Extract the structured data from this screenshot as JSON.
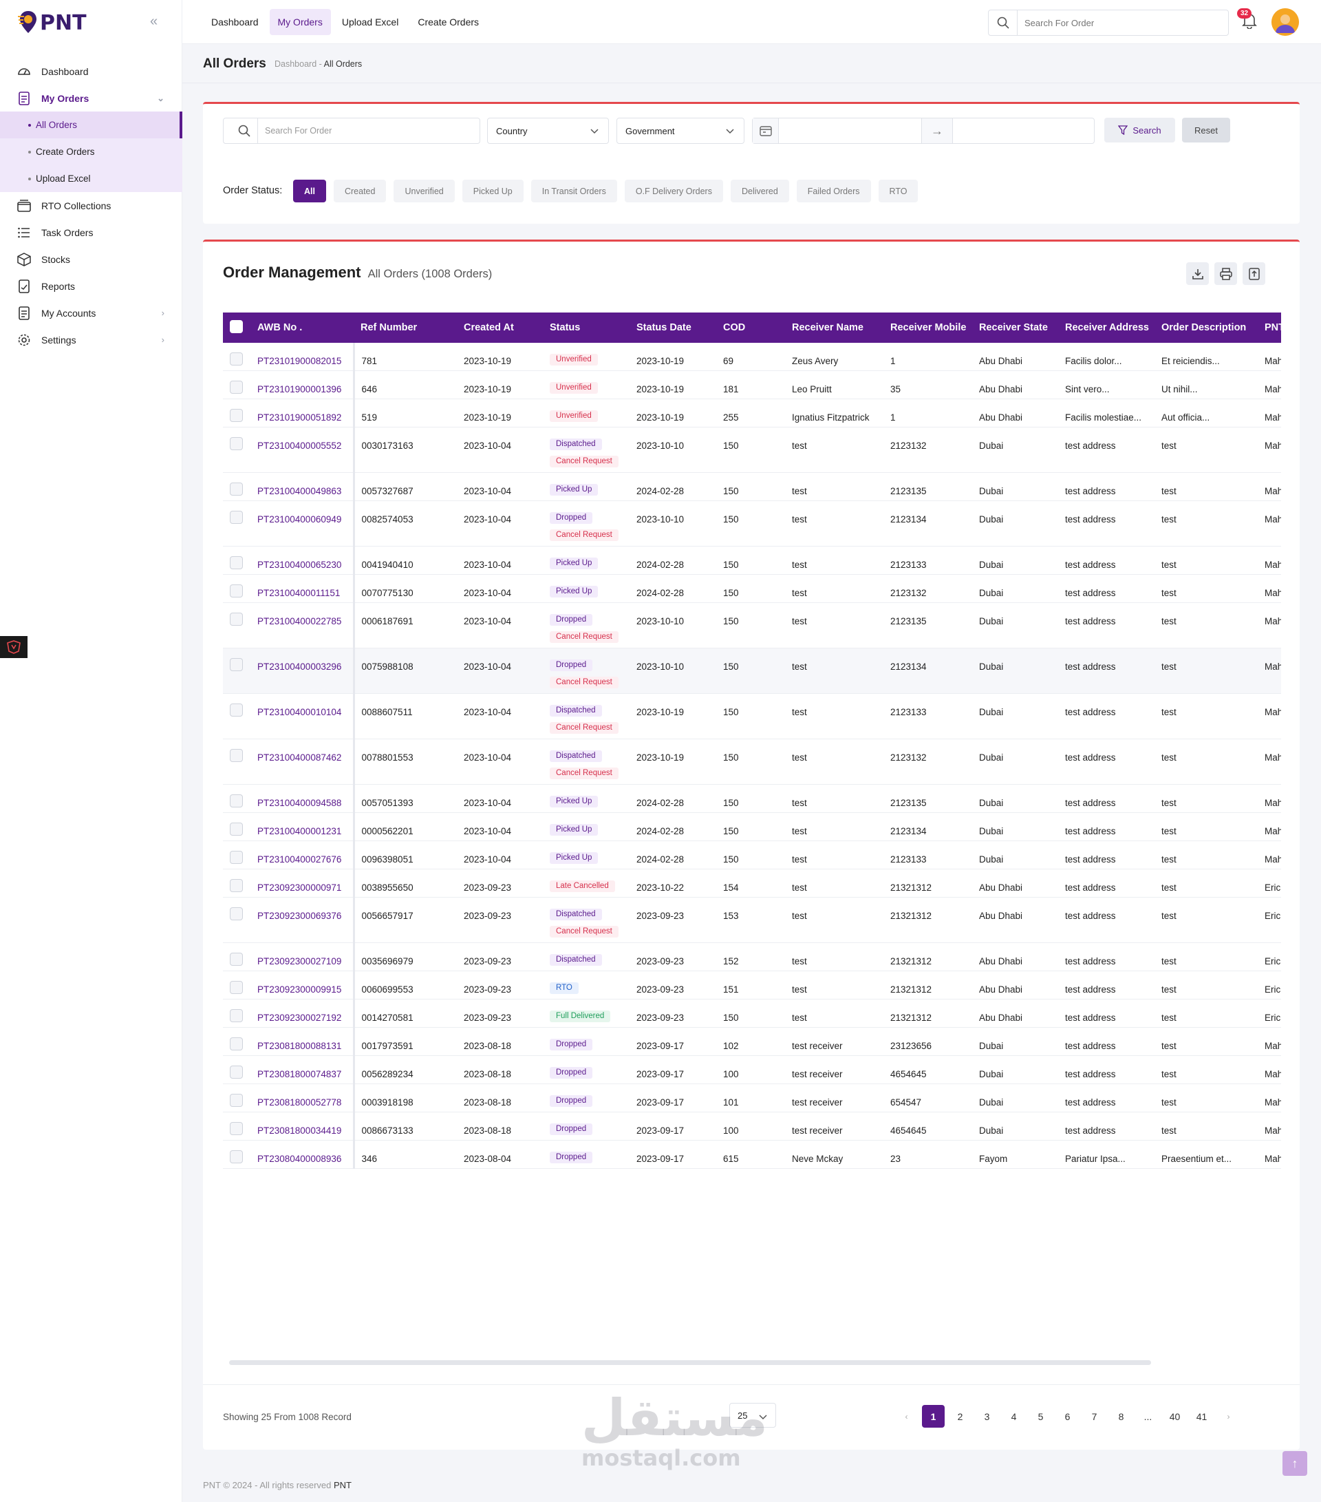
{
  "app": {
    "logo_text": "PNT"
  },
  "sidebar": {
    "items": [
      {
        "label": "Dashboard",
        "icon": "dashboard-gauge-icon"
      },
      {
        "label": "My Orders",
        "icon": "document-icon"
      },
      {
        "label": "RTO Collections",
        "icon": "box-icon"
      },
      {
        "label": "Task Orders",
        "icon": "list-icon"
      },
      {
        "label": "Stocks",
        "icon": "cube-icon"
      },
      {
        "label": "Reports",
        "icon": "report-icon"
      },
      {
        "label": "My Accounts",
        "icon": "document-icon"
      },
      {
        "label": "Settings",
        "icon": "gear-icon"
      }
    ],
    "sub_items": [
      "All Orders",
      "Create Orders",
      "Upload Excel"
    ]
  },
  "topnav": {
    "items": [
      "Dashboard",
      "My Orders",
      "Upload Excel",
      "Create Orders"
    ]
  },
  "header": {
    "search_placeholder": "Search For Order",
    "notification_count": "32"
  },
  "page": {
    "title": "All Orders",
    "crumb_root": "Dashboard",
    "crumb_sep": "-",
    "crumb_current": "All Orders"
  },
  "filters": {
    "search_placeholder": "Search For Order",
    "country": "Country",
    "government": "Government",
    "search_button": "Search",
    "reset_button": "Reset",
    "status_label": "Order Status:",
    "chips": [
      "All",
      "Created",
      "Unverified",
      "Picked Up",
      "In Transit Orders",
      "O.F Delivery Orders",
      "Delivered",
      "Failed Orders",
      "RTO"
    ]
  },
  "orders": {
    "title": "Order Management",
    "subtitle": "All Orders (1008 Orders)",
    "columns": [
      "AWB No .",
      "Ref Number",
      "Created At",
      "Status",
      "Status Date",
      "COD",
      "Receiver Name",
      "Receiver Mobile",
      "Receiver State",
      "Receiver Address",
      "Order Description",
      "PNT"
    ],
    "rows": [
      {
        "awb": "PT23101900082015",
        "ref": "781",
        "created": "2023-10-19",
        "status": [
          "Unverified"
        ],
        "status_date": "2023-10-19",
        "cod": "69",
        "name": "Zeus Avery",
        "mobile": "1",
        "state": "Abu Dhabi",
        "address": "Facilis dolor...",
        "desc": "Et reiciendis...",
        "pnt": "Mah"
      },
      {
        "awb": "PT23101900001396",
        "ref": "646",
        "created": "2023-10-19",
        "status": [
          "Unverified"
        ],
        "status_date": "2023-10-19",
        "cod": "181",
        "name": "Leo Pruitt",
        "mobile": "35",
        "state": "Abu Dhabi",
        "address": "Sint vero...",
        "desc": "Ut nihil...",
        "pnt": "Mah"
      },
      {
        "awb": "PT23101900051892",
        "ref": "519",
        "created": "2023-10-19",
        "status": [
          "Unverified"
        ],
        "status_date": "2023-10-19",
        "cod": "255",
        "name": "Ignatius Fitzpatrick",
        "mobile": "1",
        "state": "Abu Dhabi",
        "address": "Facilis molestiae...",
        "desc": "Aut officia...",
        "pnt": "Mah"
      },
      {
        "awb": "PT23100400005552",
        "ref": "0030173163",
        "created": "2023-10-04",
        "status": [
          "Dispatched",
          "Cancel Request"
        ],
        "status_date": "2023-10-10",
        "cod": "150",
        "name": "test",
        "mobile": "2123132",
        "state": "Dubai",
        "address": "test address",
        "desc": "test",
        "pnt": "Mah"
      },
      {
        "awb": "PT23100400049863",
        "ref": "0057327687",
        "created": "2023-10-04",
        "status": [
          "Picked Up"
        ],
        "status_date": "2024-02-28",
        "cod": "150",
        "name": "test",
        "mobile": "2123135",
        "state": "Dubai",
        "address": "test address",
        "desc": "test",
        "pnt": "Mah"
      },
      {
        "awb": "PT23100400060949",
        "ref": "0082574053",
        "created": "2023-10-04",
        "status": [
          "Dropped",
          "Cancel Request"
        ],
        "status_date": "2023-10-10",
        "cod": "150",
        "name": "test",
        "mobile": "2123134",
        "state": "Dubai",
        "address": "test address",
        "desc": "test",
        "pnt": "Mah"
      },
      {
        "awb": "PT23100400065230",
        "ref": "0041940410",
        "created": "2023-10-04",
        "status": [
          "Picked Up"
        ],
        "status_date": "2024-02-28",
        "cod": "150",
        "name": "test",
        "mobile": "2123133",
        "state": "Dubai",
        "address": "test address",
        "desc": "test",
        "pnt": "Mah"
      },
      {
        "awb": "PT23100400011151",
        "ref": "0070775130",
        "created": "2023-10-04",
        "status": [
          "Picked Up"
        ],
        "status_date": "2024-02-28",
        "cod": "150",
        "name": "test",
        "mobile": "2123132",
        "state": "Dubai",
        "address": "test address",
        "desc": "test",
        "pnt": "Mah"
      },
      {
        "awb": "PT23100400022785",
        "ref": "0006187691",
        "created": "2023-10-04",
        "status": [
          "Dropped",
          "Cancel Request"
        ],
        "status_date": "2023-10-10",
        "cod": "150",
        "name": "test",
        "mobile": "2123135",
        "state": "Dubai",
        "address": "test address",
        "desc": "test",
        "pnt": "Mah"
      },
      {
        "awb": "PT23100400003296",
        "ref": "0075988108",
        "created": "2023-10-04",
        "status": [
          "Dropped",
          "Cancel Request"
        ],
        "status_date": "2023-10-10",
        "cod": "150",
        "name": "test",
        "mobile": "2123134",
        "state": "Dubai",
        "address": "test address",
        "desc": "test",
        "pnt": "Mah"
      },
      {
        "awb": "PT23100400010104",
        "ref": "0088607511",
        "created": "2023-10-04",
        "status": [
          "Dispatched",
          "Cancel Request"
        ],
        "status_date": "2023-10-19",
        "cod": "150",
        "name": "test",
        "mobile": "2123133",
        "state": "Dubai",
        "address": "test address",
        "desc": "test",
        "pnt": "Mah"
      },
      {
        "awb": "PT23100400087462",
        "ref": "0078801553",
        "created": "2023-10-04",
        "status": [
          "Dispatched",
          "Cancel Request"
        ],
        "status_date": "2023-10-19",
        "cod": "150",
        "name": "test",
        "mobile": "2123132",
        "state": "Dubai",
        "address": "test address",
        "desc": "test",
        "pnt": "Mah"
      },
      {
        "awb": "PT23100400094588",
        "ref": "0057051393",
        "created": "2023-10-04",
        "status": [
          "Picked Up"
        ],
        "status_date": "2024-02-28",
        "cod": "150",
        "name": "test",
        "mobile": "2123135",
        "state": "Dubai",
        "address": "test address",
        "desc": "test",
        "pnt": "Mah"
      },
      {
        "awb": "PT23100400001231",
        "ref": "0000562201",
        "created": "2023-10-04",
        "status": [
          "Picked Up"
        ],
        "status_date": "2024-02-28",
        "cod": "150",
        "name": "test",
        "mobile": "2123134",
        "state": "Dubai",
        "address": "test address",
        "desc": "test",
        "pnt": "Mah"
      },
      {
        "awb": "PT23100400027676",
        "ref": "0096398051",
        "created": "2023-10-04",
        "status": [
          "Picked Up"
        ],
        "status_date": "2024-02-28",
        "cod": "150",
        "name": "test",
        "mobile": "2123133",
        "state": "Dubai",
        "address": "test address",
        "desc": "test",
        "pnt": "Mah"
      },
      {
        "awb": "PT23092300000971",
        "ref": "0038955650",
        "created": "2023-09-23",
        "status": [
          "Late Cancelled"
        ],
        "status_date": "2023-10-22",
        "cod": "154",
        "name": "test",
        "mobile": "21321312",
        "state": "Abu Dhabi",
        "address": "test address",
        "desc": "test",
        "pnt": "Eric"
      },
      {
        "awb": "PT23092300069376",
        "ref": "0056657917",
        "created": "2023-09-23",
        "status": [
          "Dispatched",
          "Cancel Request"
        ],
        "status_date": "2023-09-23",
        "cod": "153",
        "name": "test",
        "mobile": "21321312",
        "state": "Abu Dhabi",
        "address": "test address",
        "desc": "test",
        "pnt": "Eric"
      },
      {
        "awb": "PT23092300027109",
        "ref": "0035696979",
        "created": "2023-09-23",
        "status": [
          "Dispatched"
        ],
        "status_date": "2023-09-23",
        "cod": "152",
        "name": "test",
        "mobile": "21321312",
        "state": "Abu Dhabi",
        "address": "test address",
        "desc": "test",
        "pnt": "Eric"
      },
      {
        "awb": "PT23092300009915",
        "ref": "0060699553",
        "created": "2023-09-23",
        "status": [
          "RTO"
        ],
        "status_date": "2023-09-23",
        "cod": "151",
        "name": "test",
        "mobile": "21321312",
        "state": "Abu Dhabi",
        "address": "test address",
        "desc": "test",
        "pnt": "Eric"
      },
      {
        "awb": "PT23092300027192",
        "ref": "0014270581",
        "created": "2023-09-23",
        "status": [
          "Full Delivered"
        ],
        "status_date": "2023-09-23",
        "cod": "150",
        "name": "test",
        "mobile": "21321312",
        "state": "Abu Dhabi",
        "address": "test address",
        "desc": "test",
        "pnt": "Eric"
      },
      {
        "awb": "PT23081800088131",
        "ref": "0017973591",
        "created": "2023-08-18",
        "status": [
          "Dropped"
        ],
        "status_date": "2023-09-17",
        "cod": "102",
        "name": "test receiver",
        "mobile": "23123656",
        "state": "Dubai",
        "address": "test address",
        "desc": "test",
        "pnt": "Mah"
      },
      {
        "awb": "PT23081800074837",
        "ref": "0056289234",
        "created": "2023-08-18",
        "status": [
          "Dropped"
        ],
        "status_date": "2023-09-17",
        "cod": "100",
        "name": "test receiver",
        "mobile": "4654645",
        "state": "Dubai",
        "address": "test address",
        "desc": "test",
        "pnt": "Mah"
      },
      {
        "awb": "PT23081800052778",
        "ref": "0003918198",
        "created": "2023-08-18",
        "status": [
          "Dropped"
        ],
        "status_date": "2023-09-17",
        "cod": "101",
        "name": "test receiver",
        "mobile": "654547",
        "state": "Dubai",
        "address": "test address",
        "desc": "test",
        "pnt": "Mah"
      },
      {
        "awb": "PT23081800034419",
        "ref": "0086673133",
        "created": "2023-08-18",
        "status": [
          "Dropped"
        ],
        "status_date": "2023-09-17",
        "cod": "100",
        "name": "test receiver",
        "mobile": "4654645",
        "state": "Dubai",
        "address": "test address",
        "desc": "test",
        "pnt": "Mah"
      },
      {
        "awb": "PT23080400008936",
        "ref": "346",
        "created": "2023-08-04",
        "status": [
          "Dropped"
        ],
        "status_date": "2023-09-17",
        "cod": "615",
        "name": "Neve Mckay",
        "mobile": "23",
        "state": "Fayom",
        "address": "Pariatur Ipsa...",
        "desc": "Praesentium et...",
        "pnt": "Mah"
      }
    ]
  },
  "pagination": {
    "showing": "Showing 25 From 1008 Record",
    "page_size": "25",
    "pages": [
      "1",
      "2",
      "3",
      "4",
      "5",
      "6",
      "7",
      "8",
      "...",
      "40",
      "41"
    ],
    "current": "1"
  },
  "footer": {
    "copyright": "PNT © 2024 - All rights reserved",
    "brand": "PNT"
  },
  "watermark": {
    "arabic": "مستقل",
    "latin": "mostaql.com"
  },
  "colors": {
    "primary": "#5a1a8c",
    "accent_red": "#e5484d",
    "badge": "#e62b4a"
  }
}
